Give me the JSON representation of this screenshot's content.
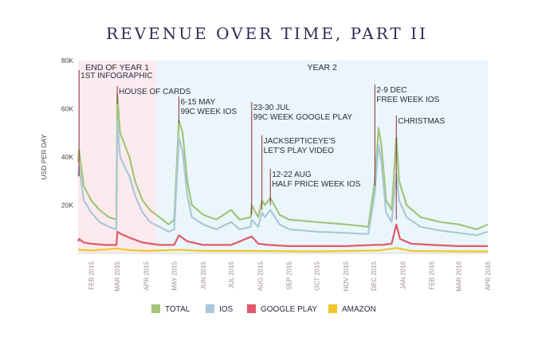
{
  "chart_data": {
    "type": "line",
    "title": "REVENUE OVER TIME, PART II",
    "ylabel": "USD PER DAY",
    "xlabel": "",
    "ylim": [
      0,
      80000
    ],
    "y_ticks": [
      {
        "value": 20000,
        "label": "20K"
      },
      {
        "value": 40000,
        "label": "40K"
      },
      {
        "value": 60000,
        "label": "60K"
      },
      {
        "value": 80000,
        "label": "80K"
      }
    ],
    "x_ticks": [
      "FEB 2015",
      "MAR 2015",
      "APR 2015",
      "MAY 2015",
      "JUN 2015",
      "JUL 2015",
      "AUG 2015",
      "SEP 2015",
      "OCT 2015",
      "NOV 2015",
      "DEC 2015",
      "JAN 2016",
      "FEB 2016",
      "MAR 2016",
      "APR 2016"
    ],
    "x_range": [
      "2015-01-18",
      "2016-04-01"
    ],
    "regions": [
      {
        "label": "END OF YEAR 1",
        "start": "2015-01-18",
        "end": "2015-04-12",
        "color": "#fcebee"
      },
      {
        "label": "YEAR 2",
        "start": "2015-04-12",
        "end": "2016-04-01",
        "color": "#eaf6fb"
      }
    ],
    "series": [
      {
        "name": "TOTAL",
        "color": "#a3c47a",
        "points": [
          [
            "2015-01-18",
            38000
          ],
          [
            "2015-01-19",
            43000
          ],
          [
            "2015-01-24",
            28000
          ],
          [
            "2015-02-01",
            22000
          ],
          [
            "2015-02-10",
            18000
          ],
          [
            "2015-02-20",
            15000
          ],
          [
            "2015-02-28",
            14000
          ],
          [
            "2015-03-01",
            66000
          ],
          [
            "2015-03-04",
            50000
          ],
          [
            "2015-03-10",
            44000
          ],
          [
            "2015-03-14",
            40000
          ],
          [
            "2015-03-20",
            30000
          ],
          [
            "2015-03-28",
            22000
          ],
          [
            "2015-04-05",
            18000
          ],
          [
            "2015-04-15",
            15000
          ],
          [
            "2015-04-25",
            12000
          ],
          [
            "2015-05-01",
            14000
          ],
          [
            "2015-05-06",
            55000
          ],
          [
            "2015-05-10",
            50000
          ],
          [
            "2015-05-15",
            30000
          ],
          [
            "2015-05-20",
            20000
          ],
          [
            "2015-06-01",
            16000
          ],
          [
            "2015-06-15",
            14000
          ],
          [
            "2015-07-01",
            18000
          ],
          [
            "2015-07-10",
            14000
          ],
          [
            "2015-07-22",
            15000
          ],
          [
            "2015-07-23",
            20000
          ],
          [
            "2015-07-30",
            15000
          ],
          [
            "2015-08-03",
            22000
          ],
          [
            "2015-08-06",
            20000
          ],
          [
            "2015-08-12",
            23000
          ],
          [
            "2015-08-22",
            16000
          ],
          [
            "2015-09-01",
            14000
          ],
          [
            "2015-10-01",
            13000
          ],
          [
            "2015-11-01",
            12000
          ],
          [
            "2015-11-25",
            11000
          ],
          [
            "2015-12-02",
            30000
          ],
          [
            "2015-12-06",
            52000
          ],
          [
            "2015-12-09",
            45000
          ],
          [
            "2015-12-14",
            22000
          ],
          [
            "2015-12-20",
            18000
          ],
          [
            "2015-12-25",
            48000
          ],
          [
            "2015-12-28",
            30000
          ],
          [
            "2016-01-05",
            20000
          ],
          [
            "2016-01-20",
            15000
          ],
          [
            "2016-02-10",
            13000
          ],
          [
            "2016-03-01",
            12000
          ],
          [
            "2016-03-20",
            10000
          ],
          [
            "2016-04-01",
            12000
          ]
        ]
      },
      {
        "name": "IOS",
        "color": "#a9c8d6",
        "points": [
          [
            "2015-01-18",
            32000
          ],
          [
            "2015-01-19",
            36000
          ],
          [
            "2015-01-24",
            22000
          ],
          [
            "2015-02-01",
            17000
          ],
          [
            "2015-02-10",
            13000
          ],
          [
            "2015-02-20",
            11000
          ],
          [
            "2015-02-28",
            10000
          ],
          [
            "2015-03-01",
            55000
          ],
          [
            "2015-03-04",
            40000
          ],
          [
            "2015-03-10",
            35000
          ],
          [
            "2015-03-14",
            32000
          ],
          [
            "2015-03-20",
            24000
          ],
          [
            "2015-03-28",
            17000
          ],
          [
            "2015-04-05",
            13000
          ],
          [
            "2015-04-15",
            11000
          ],
          [
            "2015-04-25",
            9000
          ],
          [
            "2015-05-01",
            10000
          ],
          [
            "2015-05-06",
            48000
          ],
          [
            "2015-05-10",
            42000
          ],
          [
            "2015-05-15",
            24000
          ],
          [
            "2015-05-20",
            15000
          ],
          [
            "2015-06-01",
            12000
          ],
          [
            "2015-06-15",
            10000
          ],
          [
            "2015-07-01",
            13000
          ],
          [
            "2015-07-10",
            10000
          ],
          [
            "2015-07-22",
            11000
          ],
          [
            "2015-07-23",
            14000
          ],
          [
            "2015-07-30",
            11000
          ],
          [
            "2015-08-03",
            17000
          ],
          [
            "2015-08-06",
            15000
          ],
          [
            "2015-08-12",
            18000
          ],
          [
            "2015-08-22",
            12000
          ],
          [
            "2015-09-01",
            10000
          ],
          [
            "2015-10-01",
            9000
          ],
          [
            "2015-11-01",
            8500
          ],
          [
            "2015-11-25",
            8000
          ],
          [
            "2015-12-02",
            25000
          ],
          [
            "2015-12-06",
            45000
          ],
          [
            "2015-12-09",
            38000
          ],
          [
            "2015-12-14",
            17000
          ],
          [
            "2015-12-20",
            13000
          ],
          [
            "2015-12-25",
            33000
          ],
          [
            "2015-12-28",
            22000
          ],
          [
            "2016-01-05",
            15000
          ],
          [
            "2016-01-20",
            11000
          ],
          [
            "2016-02-10",
            9500
          ],
          [
            "2016-03-01",
            8500
          ],
          [
            "2016-03-20",
            7500
          ],
          [
            "2016-04-01",
            9000
          ]
        ]
      },
      {
        "name": "GOOGLE PLAY",
        "color": "#e05a6a",
        "points": [
          [
            "2015-01-18",
            5000
          ],
          [
            "2015-01-19",
            6000
          ],
          [
            "2015-01-24",
            4500
          ],
          [
            "2015-02-01",
            4000
          ],
          [
            "2015-02-15",
            3500
          ],
          [
            "2015-02-28",
            3500
          ],
          [
            "2015-03-01",
            9000
          ],
          [
            "2015-03-05",
            8000
          ],
          [
            "2015-03-14",
            6500
          ],
          [
            "2015-03-28",
            4500
          ],
          [
            "2015-04-15",
            3500
          ],
          [
            "2015-05-01",
            3500
          ],
          [
            "2015-05-06",
            7500
          ],
          [
            "2015-05-15",
            5000
          ],
          [
            "2015-06-01",
            3500
          ],
          [
            "2015-07-01",
            3500
          ],
          [
            "2015-07-23",
            7000
          ],
          [
            "2015-07-30",
            4000
          ],
          [
            "2015-08-10",
            3500
          ],
          [
            "2015-09-01",
            3000
          ],
          [
            "2015-10-01",
            3000
          ],
          [
            "2015-11-01",
            3000
          ],
          [
            "2015-12-02",
            3500
          ],
          [
            "2015-12-10",
            3500
          ],
          [
            "2015-12-20",
            4000
          ],
          [
            "2015-12-25",
            12000
          ],
          [
            "2015-12-29",
            6000
          ],
          [
            "2016-01-10",
            4000
          ],
          [
            "2016-02-01",
            3500
          ],
          [
            "2016-03-01",
            3000
          ],
          [
            "2016-04-01",
            3000
          ]
        ]
      },
      {
        "name": "AMAZON",
        "color": "#f2c52c",
        "points": [
          [
            "2015-01-18",
            1500
          ],
          [
            "2015-02-01",
            1200
          ],
          [
            "2015-03-01",
            2000
          ],
          [
            "2015-03-10",
            1500
          ],
          [
            "2015-04-01",
            1000
          ],
          [
            "2015-05-06",
            1500
          ],
          [
            "2015-06-01",
            1000
          ],
          [
            "2015-08-01",
            1000
          ],
          [
            "2015-10-01",
            800
          ],
          [
            "2015-12-06",
            1200
          ],
          [
            "2015-12-25",
            2200
          ],
          [
            "2016-01-10",
            1000
          ],
          [
            "2016-04-01",
            800
          ]
        ]
      }
    ],
    "annotations": [
      {
        "date": "2015-01-19",
        "lines": [
          "1ST INFOGRAPHIC"
        ],
        "end": 32000
      },
      {
        "date": "2015-03-01",
        "lines": [
          "HOUSE OF CARDS"
        ],
        "end": 62000
      },
      {
        "date": "2015-05-06",
        "lines": [
          "6-15 MAY",
          "99C WEEK IOS"
        ],
        "end": 54000
      },
      {
        "date": "2015-07-23",
        "lines": [
          "23-30 JUL",
          "99C WEEK GOOGLE PLAY"
        ],
        "end": 16000
      },
      {
        "date": "2015-08-03",
        "lines": [
          "JACKSEPTICEYE'S",
          "LET'S PLAY VIDEO"
        ],
        "end": 18000
      },
      {
        "date": "2015-08-12",
        "lines": [
          "12-22 AUG",
          "HALF PRICE WEEK IOS"
        ],
        "end": 20000
      },
      {
        "date": "2015-12-02",
        "lines": [
          "2-9 DEC",
          "FREE WEEK IOS"
        ],
        "end": 28000
      },
      {
        "date": "2015-12-25",
        "lines": [
          "CHRISTMAS"
        ],
        "end": 14000
      }
    ],
    "legend": [
      "TOTAL",
      "IOS",
      "GOOGLE PLAY",
      "AMAZON"
    ],
    "legend_position": "bottom",
    "grid": false
  }
}
